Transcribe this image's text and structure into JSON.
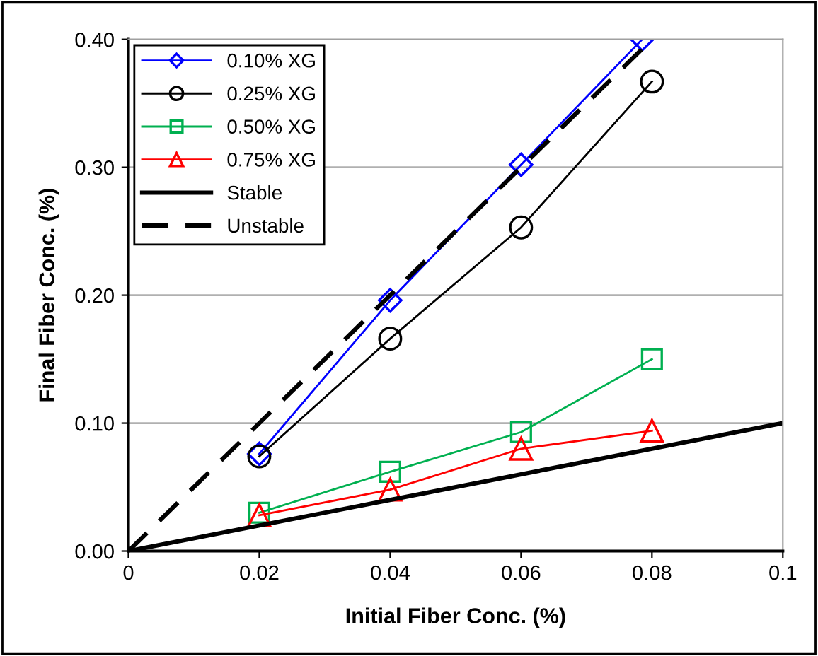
{
  "chart_data": {
    "type": "line",
    "xlabel": "Initial Fiber Conc. (%)",
    "ylabel": "Final Fiber Conc. (%)",
    "xlim": [
      0,
      0.1
    ],
    "ylim": [
      0,
      0.4
    ],
    "xticks": [
      0,
      0.02,
      0.04,
      0.06,
      0.08,
      0.1
    ],
    "yticks": [
      {
        "value": 0,
        "label": "0.00"
      },
      {
        "value": 0.1,
        "label": "0.10"
      },
      {
        "value": 0.2,
        "label": "0.20"
      },
      {
        "value": 0.3,
        "label": "0.30"
      },
      {
        "value": 0.4,
        "label": "0.40"
      }
    ],
    "grid": "y",
    "legend": "top left",
    "series": [
      {
        "name": "0.10% XG",
        "color": "#0000ff",
        "marker": "diamond",
        "x": [
          0.02,
          0.04,
          0.06,
          0.0785
        ],
        "values": [
          0.076,
          0.196,
          0.302,
          0.4
        ]
      },
      {
        "name": "0.25% XG",
        "color": "#000000",
        "marker": "circle",
        "x": [
          0.02,
          0.04,
          0.06,
          0.08
        ],
        "values": [
          0.074,
          0.166,
          0.253,
          0.367
        ]
      },
      {
        "name": "0.50% XG",
        "color": "#00b050",
        "marker": "square",
        "x": [
          0.02,
          0.04,
          0.06,
          0.08
        ],
        "values": [
          0.03,
          0.062,
          0.093,
          0.15
        ]
      },
      {
        "name": "0.75% XG",
        "color": "#ff0000",
        "marker": "triangle",
        "x": [
          0.02,
          0.04,
          0.06,
          0.08
        ],
        "values": [
          0.028,
          0.048,
          0.08,
          0.094
        ]
      },
      {
        "name": "Stable",
        "color": "#000000",
        "marker": "none",
        "line_style": "solid",
        "x": [
          0,
          0.1
        ],
        "values": [
          0,
          0.1
        ]
      },
      {
        "name": "Unstable",
        "color": "#000000",
        "marker": "none",
        "line_style": "dashed",
        "x": [
          0,
          0.08
        ],
        "values": [
          0,
          0.4
        ]
      }
    ]
  }
}
